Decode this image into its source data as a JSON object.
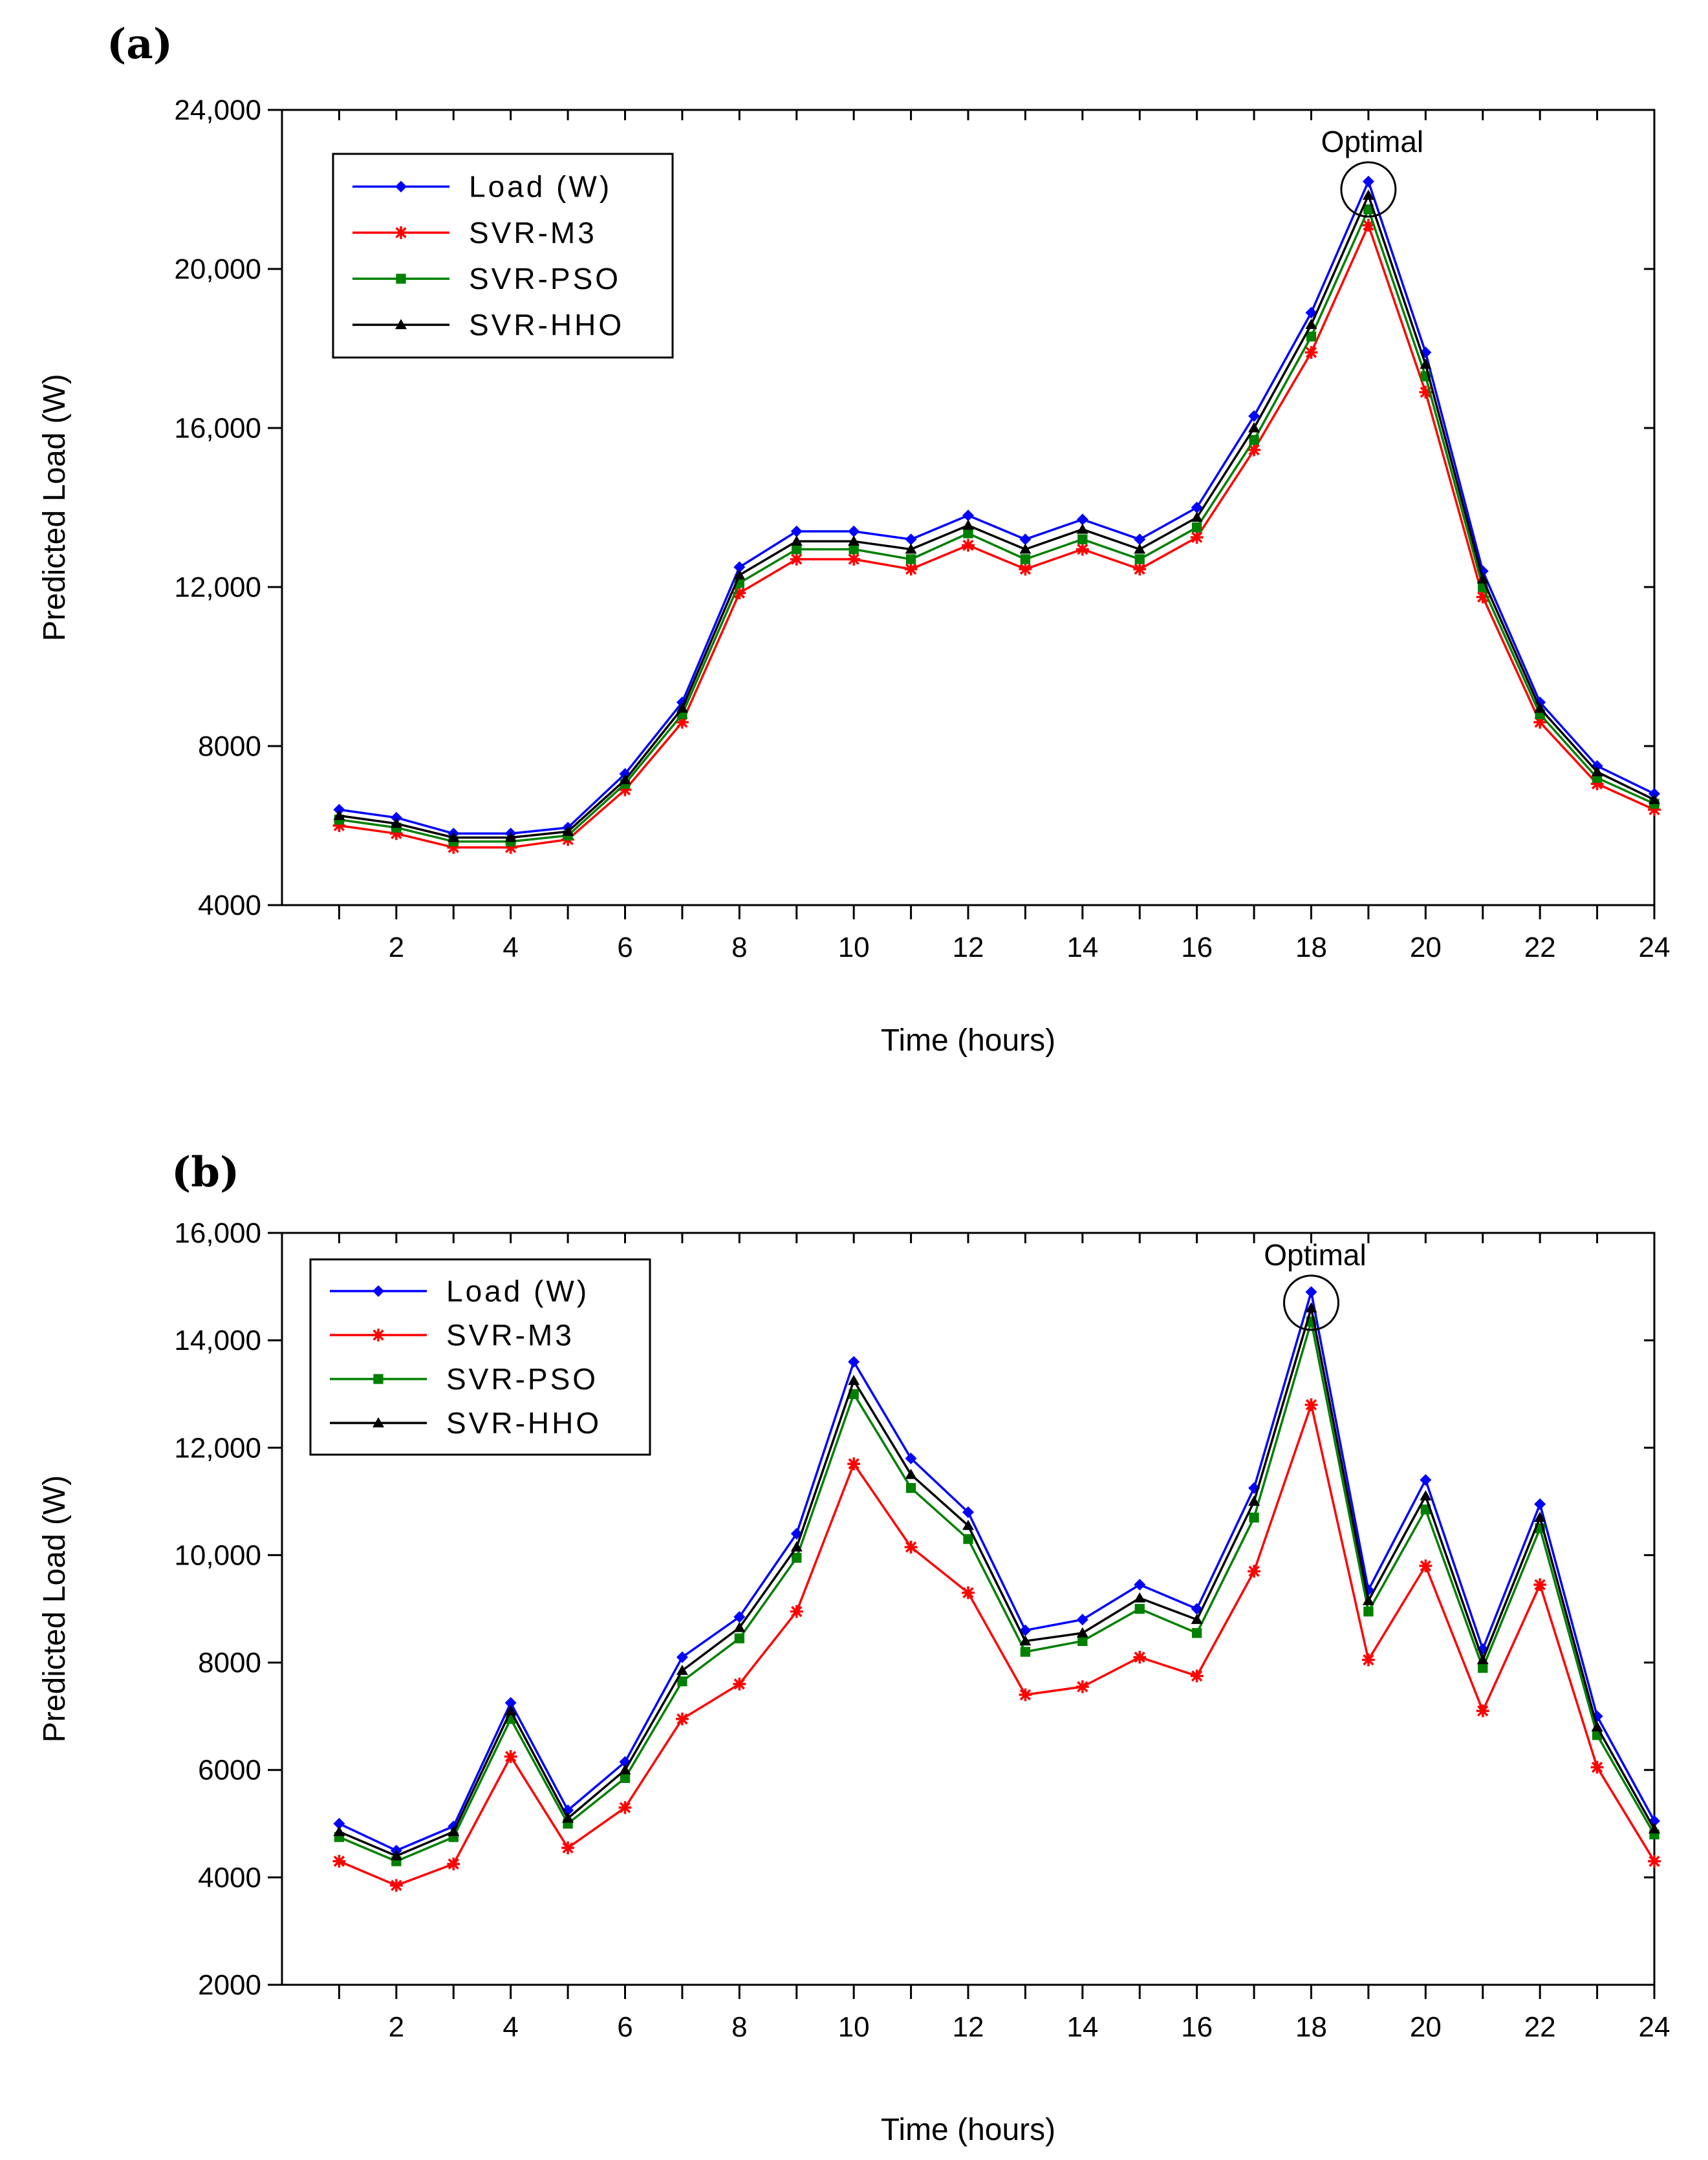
{
  "colors": {
    "load": "#0000ff",
    "svr_m3": "#ff0000",
    "svr_pso": "#008000",
    "svr_hho": "#000000"
  },
  "chart_data": [
    {
      "type": "line",
      "panel_label": "(a)",
      "xlabel": "Time (hours)",
      "ylabel": "Predicted Load (W)",
      "xlim": [
        0,
        24
      ],
      "ylim": [
        4000,
        24000
      ],
      "x": [
        1,
        2,
        3,
        4,
        5,
        6,
        7,
        8,
        9,
        10,
        11,
        12,
        13,
        14,
        15,
        16,
        17,
        18,
        19,
        20,
        21,
        22,
        23,
        24
      ],
      "x_ticks": [
        2,
        4,
        6,
        8,
        10,
        12,
        14,
        16,
        18,
        20,
        22,
        24
      ],
      "x_tick_labels": [
        "2",
        "4",
        "6",
        "8",
        "10",
        "12",
        "14",
        "16",
        "18",
        "20",
        "22",
        "24"
      ],
      "y_ticks": [
        4000,
        8000,
        12000,
        16000,
        20000,
        24000
      ],
      "y_tick_labels": [
        "4000",
        "8000",
        "12,000",
        "16,000",
        "20,000",
        "24,000"
      ],
      "legend_position": "top-left",
      "series": [
        {
          "name": "Load (W)",
          "marker": "diamond",
          "color_key": "load",
          "values": [
            6400,
            6200,
            5800,
            5800,
            5950,
            7300,
            9100,
            12500,
            13400,
            13400,
            13200,
            13800,
            13200,
            13700,
            13200,
            14000,
            16300,
            18900,
            22200,
            17900,
            12400,
            9100,
            7500,
            6800
          ]
        },
        {
          "name": "SVR-M3",
          "marker": "star",
          "color_key": "svr_m3",
          "values": [
            6000,
            5800,
            5450,
            5450,
            5650,
            6900,
            8600,
            11850,
            12700,
            12700,
            12450,
            13050,
            12450,
            12950,
            12450,
            13250,
            15450,
            17900,
            21100,
            16900,
            11750,
            8600,
            7050,
            6400
          ]
        },
        {
          "name": "SVR-PSO",
          "marker": "square",
          "color_key": "svr_pso",
          "values": [
            6150,
            5950,
            5600,
            5600,
            5750,
            7050,
            8800,
            12100,
            12950,
            12950,
            12700,
            13350,
            12700,
            13200,
            12700,
            13500,
            15700,
            18300,
            21500,
            17300,
            12000,
            8800,
            7200,
            6550
          ]
        },
        {
          "name": "SVR-HHO",
          "marker": "triangle",
          "color_key": "svr_hho",
          "values": [
            6250,
            6050,
            5700,
            5700,
            5850,
            7150,
            8950,
            12300,
            13150,
            13150,
            12950,
            13550,
            12950,
            13450,
            12950,
            13750,
            16000,
            18600,
            21850,
            17600,
            12200,
            8950,
            7350,
            6650
          ]
        }
      ],
      "annotation": {
        "text": "Optimal",
        "x": 19,
        "y": 22000
      }
    },
    {
      "type": "line",
      "panel_label": "(b)",
      "xlabel": "Time (hours)",
      "ylabel": "Predicted Load (W)",
      "xlim": [
        0,
        24
      ],
      "ylim": [
        2000,
        16000
      ],
      "x": [
        1,
        2,
        3,
        4,
        5,
        6,
        7,
        8,
        9,
        10,
        11,
        12,
        13,
        14,
        15,
        16,
        17,
        18,
        19,
        20,
        21,
        22,
        23,
        24
      ],
      "x_ticks": [
        2,
        4,
        6,
        8,
        10,
        12,
        14,
        16,
        18,
        20,
        22,
        24
      ],
      "x_tick_labels": [
        "2",
        "4",
        "6",
        "8",
        "10",
        "12",
        "14",
        "16",
        "18",
        "20",
        "22",
        "24"
      ],
      "y_ticks": [
        2000,
        4000,
        6000,
        8000,
        10000,
        12000,
        14000,
        16000
      ],
      "y_tick_labels": [
        "2000",
        "4000",
        "6000",
        "8000",
        "10,000",
        "12,000",
        "14,000",
        "16,000"
      ],
      "legend_position": "top-left",
      "series": [
        {
          "name": "Load (W)",
          "marker": "diamond",
          "color_key": "load",
          "values": [
            5000,
            4500,
            4950,
            7250,
            5250,
            6150,
            8100,
            8850,
            10400,
            13600,
            11800,
            10800,
            8600,
            8800,
            9450,
            9000,
            11250,
            14900,
            9350,
            11400,
            8250,
            10950,
            7000,
            5050
          ]
        },
        {
          "name": "SVR-M3",
          "marker": "star",
          "color_key": "svr_m3",
          "values": [
            4300,
            3850,
            4250,
            6250,
            4550,
            5300,
            6950,
            7600,
            8950,
            11700,
            10150,
            9300,
            7400,
            7550,
            8100,
            7750,
            9700,
            12800,
            8050,
            9800,
            7100,
            9450,
            6050,
            4300
          ]
        },
        {
          "name": "SVR-PSO",
          "marker": "square",
          "color_key": "svr_pso",
          "values": [
            4750,
            4300,
            4750,
            6950,
            5000,
            5850,
            7650,
            8450,
            9950,
            13000,
            11250,
            10300,
            8200,
            8400,
            9000,
            8550,
            10700,
            14350,
            8950,
            10850,
            7900,
            10500,
            6650,
            4800
          ]
        },
        {
          "name": "SVR-HHO",
          "marker": "triangle",
          "color_key": "svr_hho",
          "values": [
            4850,
            4400,
            4850,
            7100,
            5100,
            6000,
            7850,
            8650,
            10150,
            13250,
            11500,
            10550,
            8400,
            8550,
            9200,
            8800,
            11000,
            14600,
            9150,
            11100,
            8050,
            10700,
            6800,
            4900
          ]
        }
      ],
      "annotation": {
        "text": "Optimal",
        "x": 18,
        "y": 14700
      }
    }
  ]
}
